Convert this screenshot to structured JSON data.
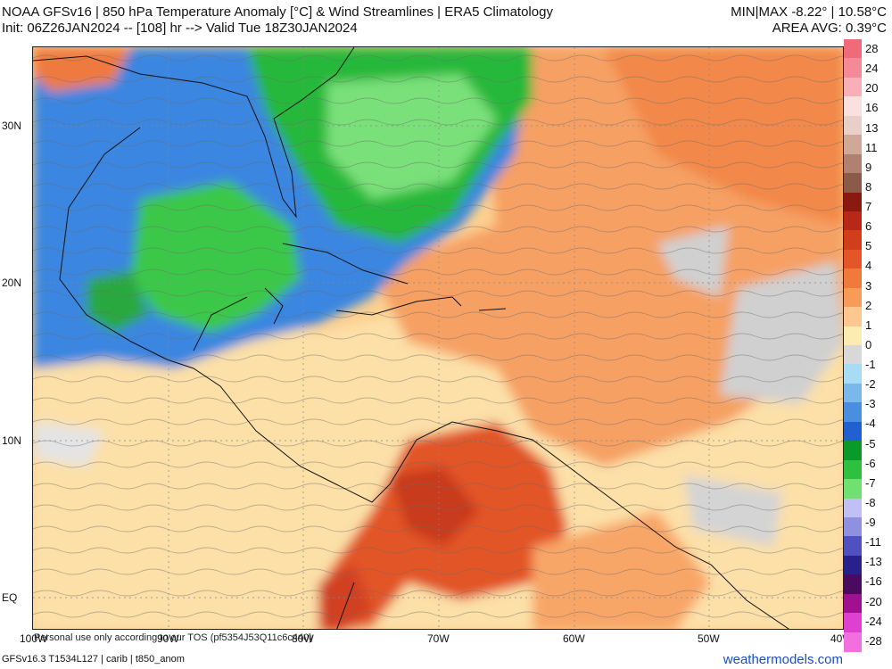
{
  "header": {
    "title_line1": "NOAA GFSv16 | 850 hPa Temperature Anomaly [°C] & Wind Streamlines | ERA5 Climatology",
    "title_line2": "Init: 06Z26JAN2024 -- [108] hr --> Valid Tue 18Z30JAN2024",
    "minmax": "MIN|MAX -8.22° | 10.58°C",
    "area_avg": "AREA AVG: 0.39°C"
  },
  "axes": {
    "lat_labels": [
      "30N",
      "20N",
      "10N",
      "EQ"
    ],
    "lon_labels": [
      "100W",
      "90W",
      "80W",
      "70W",
      "60W",
      "50W",
      "40W"
    ]
  },
  "notice": "Personal use only according to our TOS (pf5354J53Q11c6c440)",
  "footer": {
    "model_info": "GFSv16.3 T1534L127 | carib | t850_anom",
    "brand": "weathermodels.com"
  },
  "colorbar": {
    "labels": [
      "28",
      "24",
      "20",
      "16",
      "13",
      "11",
      "9",
      "8",
      "7",
      "6",
      "5",
      "4",
      "3",
      "2",
      "1",
      "0",
      "-1",
      "-2",
      "-3",
      "-4",
      "-5",
      "-6",
      "-7",
      "-8",
      "-9",
      "-11",
      "-13",
      "-16",
      "-20",
      "-24",
      "-28"
    ],
    "colors": [
      "#f06a7a",
      "#f48a98",
      "#f8b0b8",
      "#fbe0e0",
      "#e8d0c8",
      "#cfa898",
      "#b08070",
      "#8c5a48",
      "#8a1a10",
      "#b82818",
      "#d23e1c",
      "#e4562a",
      "#f07a3a",
      "#f89a58",
      "#fcc890",
      "#fcecb0",
      "#d8d8d8",
      "#a8dcf4",
      "#7ab8ec",
      "#4a8ee0",
      "#2060d0",
      "#0a9a2a",
      "#30c040",
      "#70e070",
      "#c0c0f4",
      "#9090e0",
      "#5050c0",
      "#28208c",
      "#4a0a60",
      "#a01090",
      "#e040d0",
      "#f070e0"
    ]
  }
}
